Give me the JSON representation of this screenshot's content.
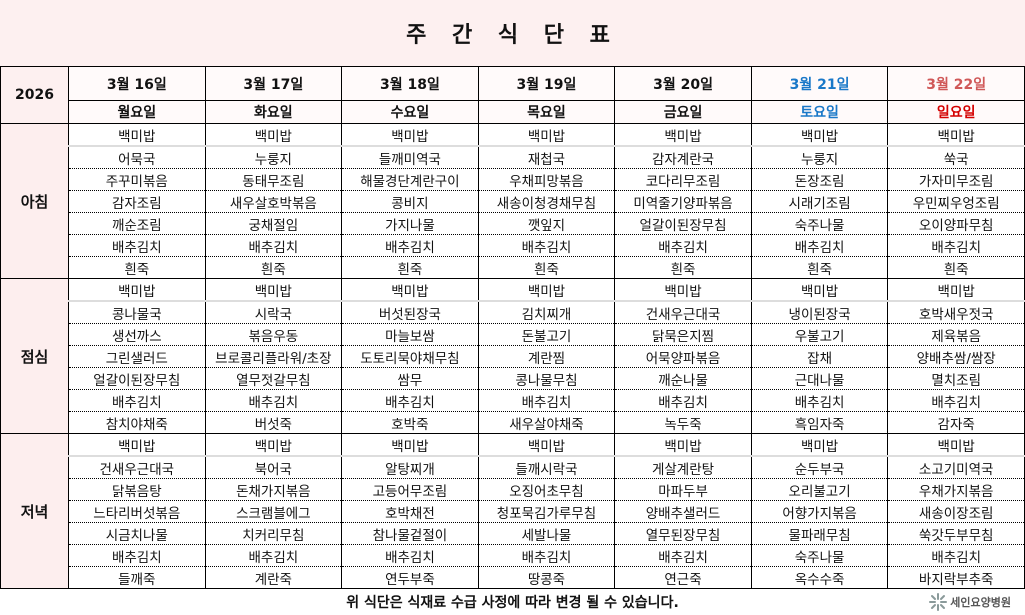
{
  "title": "주 간 식 단 표",
  "year": "2026",
  "days": [
    {
      "date": "3월 16일",
      "weekday": "월요일"
    },
    {
      "date": "3월 17일",
      "weekday": "화요일"
    },
    {
      "date": "3월 18일",
      "weekday": "수요일"
    },
    {
      "date": "3월 19일",
      "weekday": "목요일"
    },
    {
      "date": "3월 20일",
      "weekday": "금요일"
    },
    {
      "date": "3월 21일",
      "weekday": "토요일"
    },
    {
      "date": "3월 22일",
      "weekday": "일요일"
    }
  ],
  "colors": {
    "saturday": "#1a78c8",
    "sunday_date": "#d05858",
    "sunday_weekday": "#d40000",
    "header_bg": "#fdf0f0"
  },
  "meals": [
    {
      "label": "아침",
      "rows": [
        [
          "백미밥",
          "백미밥",
          "백미밥",
          "백미밥",
          "백미밥",
          "백미밥",
          "백미밥"
        ],
        [
          "어묵국",
          "누룽지",
          "들깨미역국",
          "재첩국",
          "감자계란국",
          "누룽지",
          "쑥국"
        ],
        [
          "주꾸미볶음",
          "동태무조림",
          "해물경단계란구이",
          "우채피망볶음",
          "코다리무조림",
          "돈장조림",
          "가자미무조림"
        ],
        [
          "감자조림",
          "새우살호박볶음",
          "콩비지",
          "새송이청경채무침",
          "미역줄기양파볶음",
          "시래기조림",
          "우민찌우엉조림"
        ],
        [
          "깨순조림",
          "궁채절임",
          "가지나물",
          "깻잎지",
          "얼갈이된장무침",
          "숙주나물",
          "오이양파무침"
        ],
        [
          "배추김치",
          "배추김치",
          "배추김치",
          "배추김치",
          "배추김치",
          "배추김치",
          "배추김치"
        ],
        [
          "흰죽",
          "흰죽",
          "흰죽",
          "흰죽",
          "흰죽",
          "흰죽",
          "흰죽"
        ]
      ]
    },
    {
      "label": "점심",
      "rows": [
        [
          "백미밥",
          "백미밥",
          "백미밥",
          "백미밥",
          "백미밥",
          "백미밥",
          "백미밥"
        ],
        [
          "콩나물국",
          "시락국",
          "버섯된장국",
          "김치찌개",
          "건새우근대국",
          "냉이된장국",
          "호박새우젓국"
        ],
        [
          "생선까스",
          "볶음우동",
          "마늘보쌈",
          "돈불고기",
          "닭묵은지찜",
          "우불고기",
          "제육볶음"
        ],
        [
          "그린샐러드",
          "브로콜리플라워/초장",
          "도토리묵야채무침",
          "계란찜",
          "어묵양파볶음",
          "잡채",
          "양배추쌈/쌈장"
        ],
        [
          "얼갈이된장무침",
          "열무젓갈무침",
          "쌈무",
          "콩나물무침",
          "깨순나물",
          "근대나물",
          "멸치조림"
        ],
        [
          "배추김치",
          "배추김치",
          "배추김치",
          "배추김치",
          "배추김치",
          "배추김치",
          "배추김치"
        ],
        [
          "참치야채죽",
          "버섯죽",
          "호박죽",
          "새우살야채죽",
          "녹두죽",
          "흑임자죽",
          "감자죽"
        ]
      ]
    },
    {
      "label": "저녁",
      "rows": [
        [
          "백미밥",
          "백미밥",
          "백미밥",
          "백미밥",
          "백미밥",
          "백미밥",
          "백미밥"
        ],
        [
          "건새우근대국",
          "북어국",
          "알탕찌개",
          "들깨시락국",
          "게살계란탕",
          "순두부국",
          "소고기미역국"
        ],
        [
          "닭볶음탕",
          "돈채가지볶음",
          "고등어무조림",
          "오징어초무침",
          "마파두부",
          "오리불고기",
          "우채가지볶음"
        ],
        [
          "느타리버섯볶음",
          "스크램블에그",
          "호박채전",
          "청포묵김가루무침",
          "양배추샐러드",
          "어향가지볶음",
          "새송이장조림"
        ],
        [
          "시금치나물",
          "치커리무침",
          "참나물겉절이",
          "세발나물",
          "열무된장무침",
          "물파래무침",
          "쑥갓두부무침"
        ],
        [
          "배추김치",
          "배추김치",
          "배추김치",
          "배추김치",
          "배추김치",
          "숙주나물",
          "배추김치"
        ],
        [
          "들깨죽",
          "계란죽",
          "연두부죽",
          "땅콩죽",
          "연근죽",
          "옥수수죽",
          "바지락부추죽"
        ]
      ]
    }
  ],
  "footer": {
    "notice": "위 식단은 식재료 수급 사정에 따라 변경 될 수 있습니다.",
    "logo_text": "세인요양병원",
    "logo_icon": "sparkle-icon"
  }
}
